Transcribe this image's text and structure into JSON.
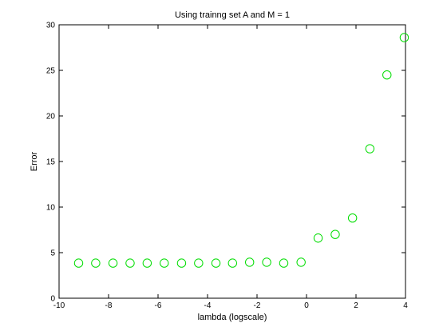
{
  "chart_data": {
    "type": "scatter",
    "title": "Using trainng set A and M = 1",
    "xlabel": "lambda (logscale)",
    "ylabel": "Error",
    "xlim": [
      -10,
      4
    ],
    "ylim": [
      0,
      30
    ],
    "xticks": [
      -10,
      -8,
      -6,
      -4,
      -2,
      0,
      2,
      4
    ],
    "yticks": [
      0,
      5,
      10,
      15,
      20,
      25,
      30
    ],
    "grid": false,
    "marker": "open-circle",
    "marker_color": "#00dd00",
    "series": [
      {
        "x": [
          -9.21,
          -8.52,
          -7.82,
          -7.13,
          -6.44,
          -5.75,
          -5.05,
          -4.36,
          -3.66,
          -2.99,
          -2.3,
          -1.61,
          -0.92,
          -0.22,
          0.47,
          1.16,
          1.86,
          2.56,
          3.25,
          3.95
        ],
        "y": [
          3.85,
          3.85,
          3.85,
          3.85,
          3.85,
          3.85,
          3.85,
          3.85,
          3.85,
          3.85,
          3.95,
          3.95,
          3.85,
          3.95,
          6.6,
          7.0,
          8.8,
          16.4,
          24.5,
          28.6
        ]
      }
    ]
  }
}
